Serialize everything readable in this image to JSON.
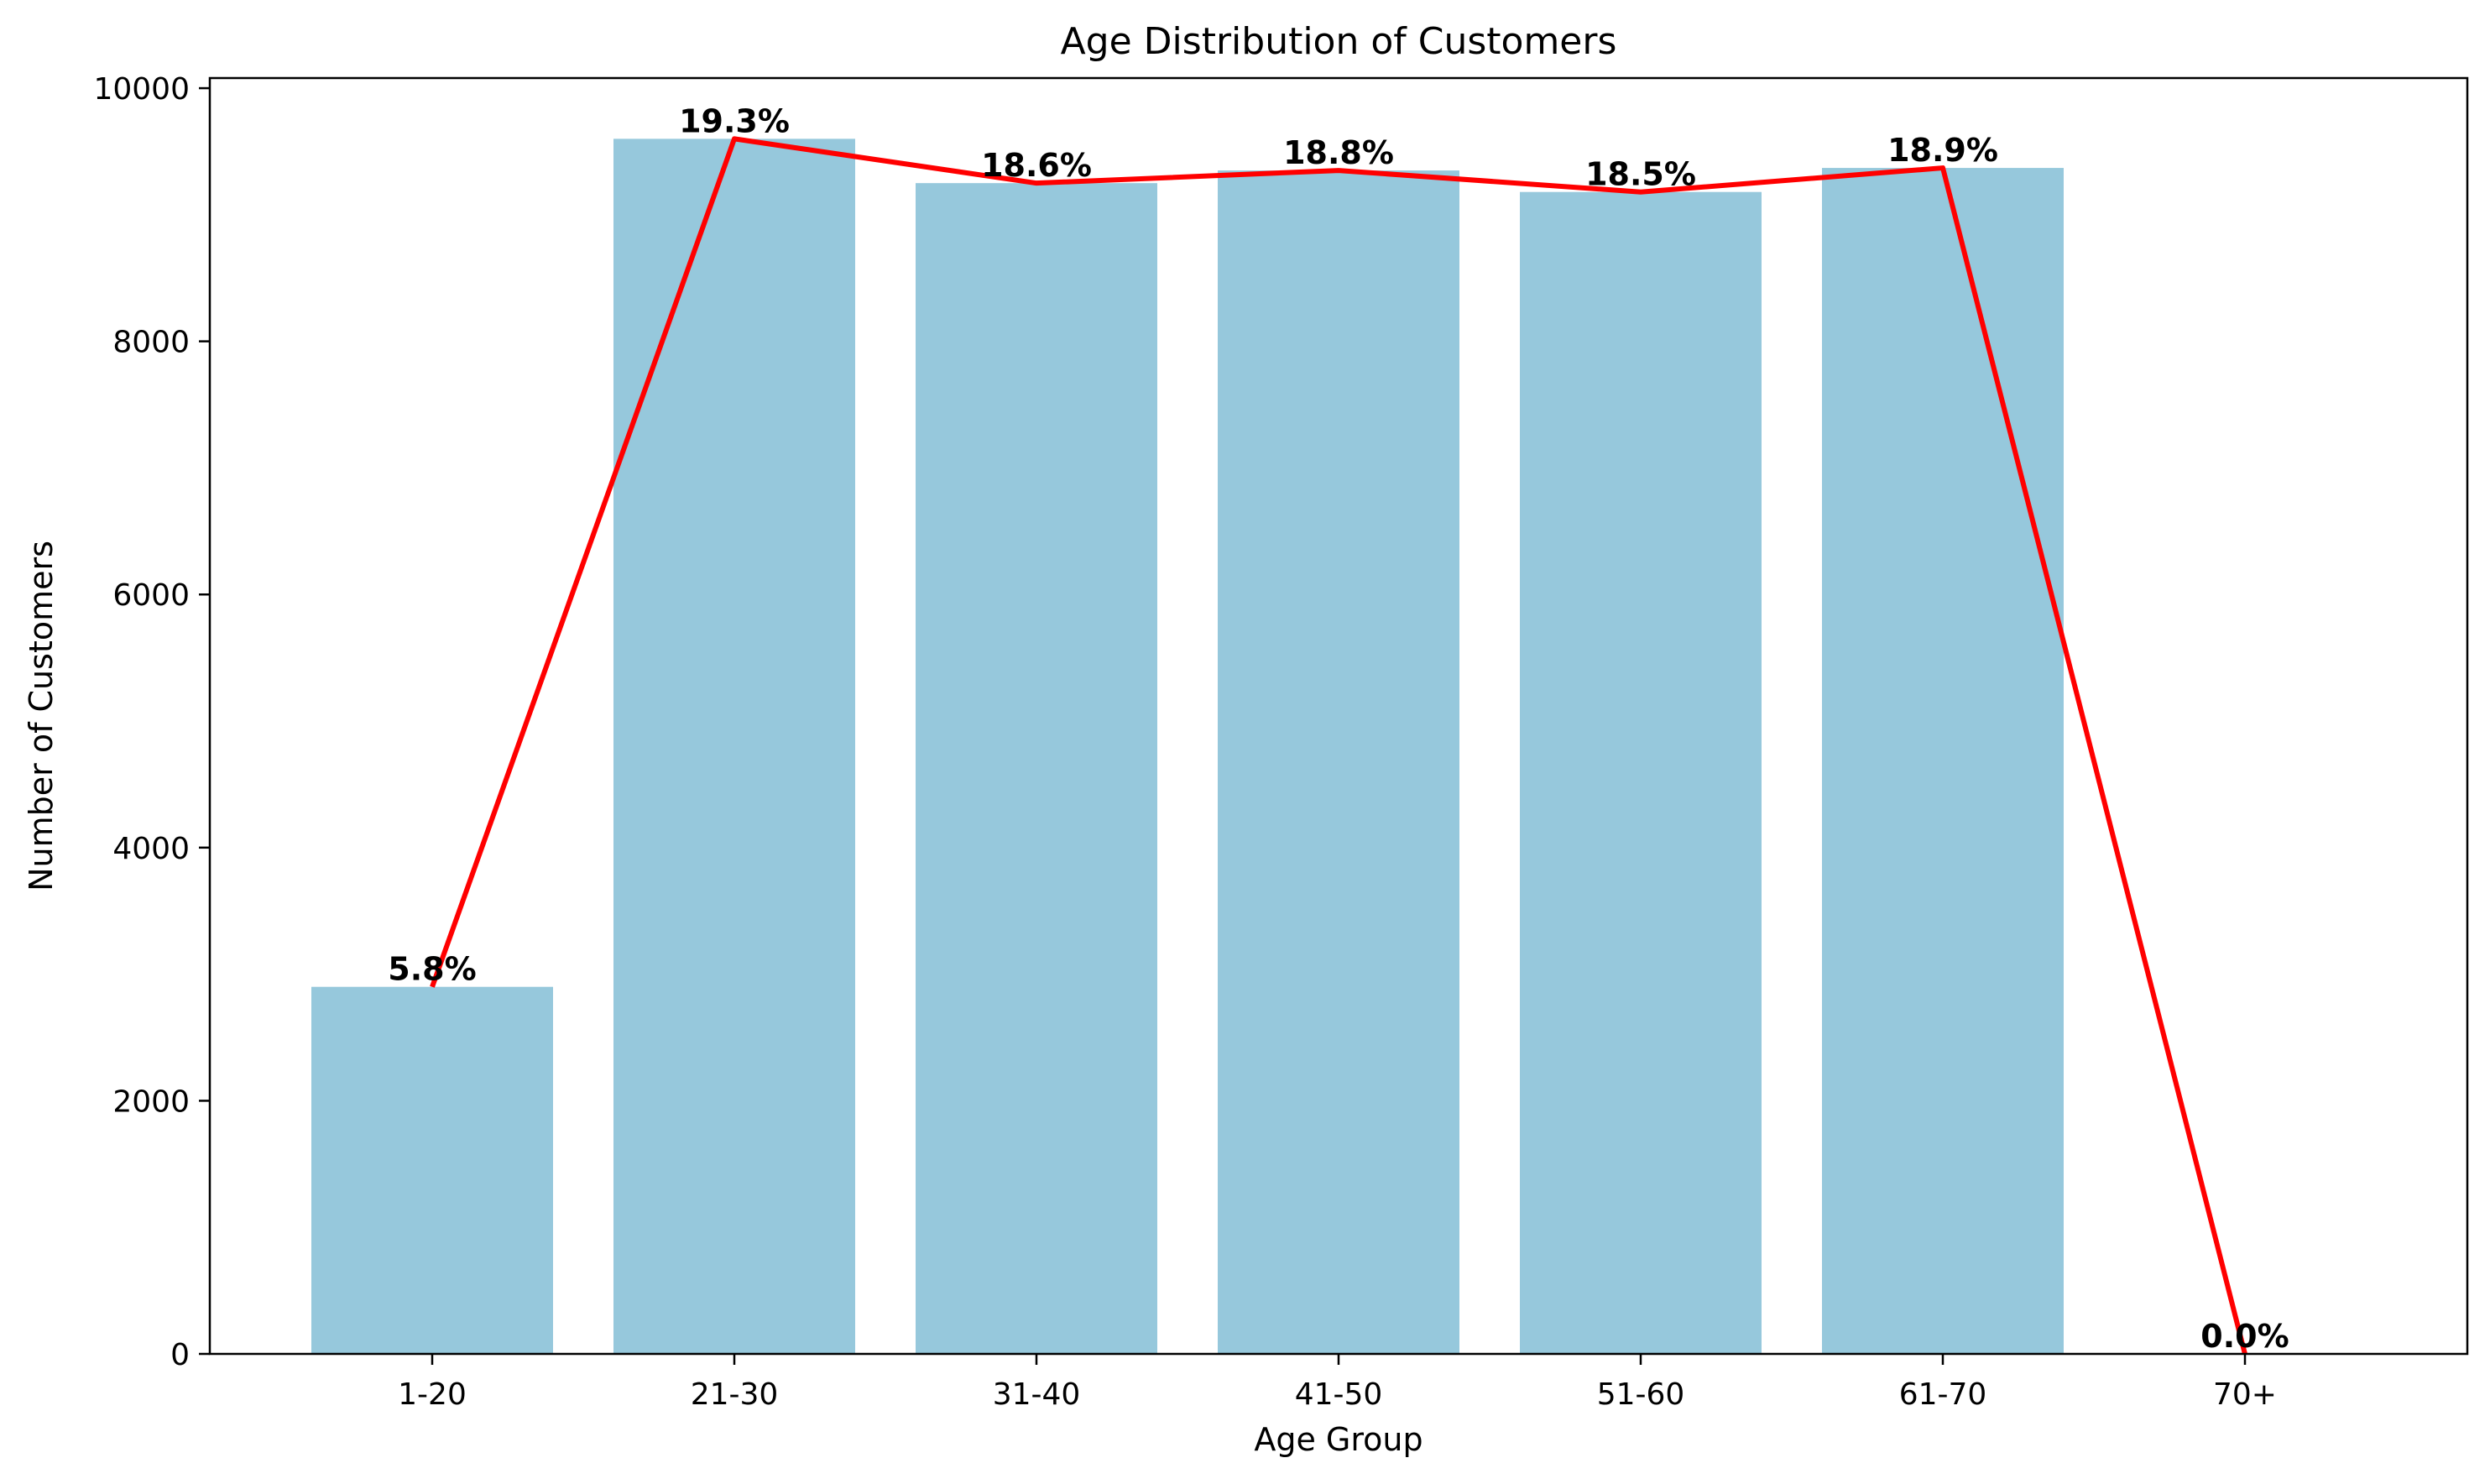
{
  "chart_data": {
    "type": "bar",
    "title": "Age Distribution of Customers",
    "xlabel": "Age Group",
    "ylabel": "Number of Customers",
    "categories": [
      "1-20",
      "21-30",
      "31-40",
      "41-50",
      "51-60",
      "61-70",
      "70+"
    ],
    "series": [
      {
        "type": "bar",
        "values": [
          2900,
          9600,
          9250,
          9350,
          9180,
          9370,
          0
        ],
        "color": "#96c8dc"
      },
      {
        "type": "line",
        "values": [
          2900,
          9600,
          9250,
          9350,
          9180,
          9370,
          0
        ],
        "color": "#ff0000"
      }
    ],
    "data_labels": [
      "5.8%",
      "19.3%",
      "18.6%",
      "18.8%",
      "18.5%",
      "18.9%",
      "0.0%"
    ],
    "ylim": [
      0,
      10080
    ],
    "yticks": [
      0,
      2000,
      4000,
      6000,
      8000,
      10000
    ],
    "ytick_labels": [
      "0",
      "2000",
      "4000",
      "6000",
      "8000",
      "10000"
    ],
    "grid": false,
    "legend": "none"
  }
}
